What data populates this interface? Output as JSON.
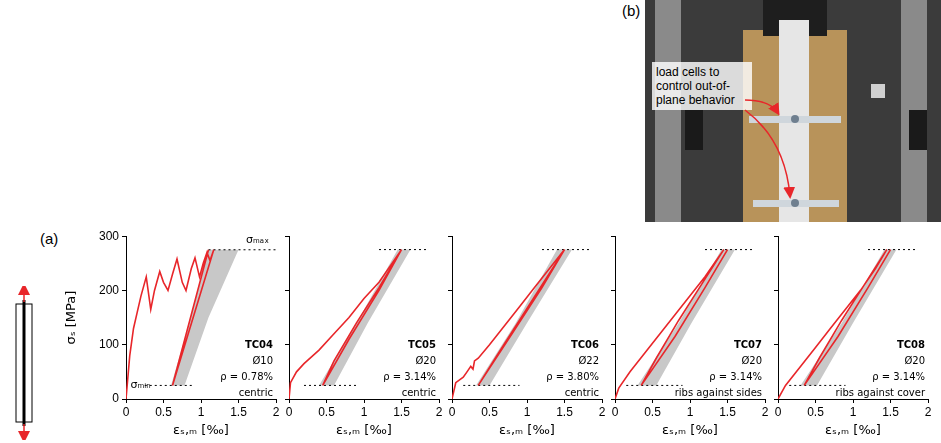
{
  "figure": {
    "panel_a_label": "(a)",
    "panel_b_label": "(b)",
    "photo_annotation": "load cells to control out-of-plane behavior"
  },
  "chart_data": [
    {
      "type": "line",
      "ylabel": "σₛ [MPa]",
      "xlabel": "εₛ,ₘ [‰]",
      "xlim": [
        0,
        2
      ],
      "xticks": [
        0,
        0.5,
        1,
        1.5,
        2
      ],
      "ylim": [
        0,
        300
      ],
      "yticks": [
        0,
        100,
        200,
        300
      ],
      "grid": false,
      "text_block": [
        "TC04",
        "Ø10",
        "ρ = 0.78%",
        "centric"
      ],
      "annotations": [
        {
          "text": "σₘₐₓ",
          "x": 1.6,
          "y": 292
        },
        {
          "text": "σₘᵢₙ",
          "x": 0.06,
          "y": 25
        }
      ],
      "series": [
        {
          "type": "area",
          "color": "#c8c8c8",
          "x": [
            0.6,
            0.8,
            1.1,
            1.5,
            1.1,
            0.78
          ],
          "values": [
            25,
            120,
            275,
            275,
            150,
            25
          ]
        },
        {
          "type": "line",
          "color": "#e8262a",
          "x": [
            0,
            0.05,
            0.1,
            0.15,
            0.2,
            0.27,
            0.33,
            0.38,
            0.45,
            0.5,
            0.56,
            0.62,
            0.68,
            0.75,
            0.8,
            0.87,
            0.92,
            0.98,
            1.03,
            1.08,
            1.12,
            1.17,
            0.62,
            1.1
          ],
          "values": [
            0,
            80,
            130,
            160,
            190,
            225,
            165,
            200,
            235,
            215,
            200,
            230,
            258,
            215,
            200,
            240,
            260,
            225,
            250,
            270,
            255,
            275,
            25,
            275
          ]
        },
        {
          "type": "line",
          "line_style": "dotted",
          "color": "#000000",
          "x": [
            1.1,
            2
          ],
          "values": [
            275,
            275
          ]
        },
        {
          "type": "line",
          "line_style": "dotted",
          "color": "#000000",
          "x": [
            0.25,
            0.9
          ],
          "values": [
            25,
            25
          ]
        }
      ]
    },
    {
      "type": "line",
      "xlabel": "εₛ,ₘ [‰]",
      "tick_labels": "x",
      "xlim": [
        0,
        2
      ],
      "xticks": [
        0,
        0.5,
        1,
        1.5,
        2
      ],
      "ylim": [
        0,
        300
      ],
      "yticks": [
        0,
        100,
        200,
        300
      ],
      "grid": false,
      "text_block": [
        "TC05",
        "Ø20",
        "ρ = 3.14%",
        "centric"
      ],
      "series": [
        {
          "type": "area",
          "color": "#c8c8c8",
          "x": [
            0.4,
            0.9,
            1.45,
            1.62,
            1.05,
            0.6
          ],
          "values": [
            25,
            140,
            275,
            275,
            140,
            25
          ]
        },
        {
          "type": "line",
          "color": "#e8262a",
          "x": [
            0,
            0.02,
            0.1,
            0.2,
            0.4,
            0.6,
            0.8,
            1.0,
            1.2,
            1.35,
            1.5,
            1.2,
            0.9,
            0.6,
            0.45,
            0.8,
            1.2,
            1.5
          ],
          "values": [
            0,
            30,
            50,
            65,
            90,
            120,
            150,
            185,
            215,
            245,
            275,
            205,
            140,
            70,
            25,
            110,
            200,
            275
          ]
        },
        {
          "type": "line",
          "line_style": "dotted",
          "color": "#000000",
          "x": [
            1.2,
            1.85
          ],
          "values": [
            275,
            275
          ]
        },
        {
          "type": "line",
          "line_style": "dotted",
          "color": "#000000",
          "x": [
            0.2,
            0.9
          ],
          "values": [
            25,
            25
          ]
        }
      ]
    },
    {
      "type": "line",
      "xlabel": "εₛ,ₘ [‰]",
      "tick_labels": "x",
      "xlim": [
        0,
        2
      ],
      "xticks": [
        0,
        0.5,
        1,
        1.5,
        2
      ],
      "ylim": [
        0,
        300
      ],
      "yticks": [
        0,
        100,
        200,
        300
      ],
      "grid": false,
      "text_block": [
        "TC06",
        "Ø22",
        "ρ = 3.80%",
        "centric"
      ],
      "series": [
        {
          "type": "area",
          "color": "#c8c8c8",
          "x": [
            0.32,
            0.85,
            1.4,
            1.6,
            1.0,
            0.5
          ],
          "values": [
            25,
            140,
            275,
            275,
            140,
            25
          ]
        },
        {
          "type": "line",
          "color": "#e8262a",
          "x": [
            0,
            0.05,
            0.15,
            0.2,
            0.25,
            0.28,
            0.3,
            0.35,
            0.5,
            0.7,
            0.9,
            1.1,
            1.3,
            1.5,
            1.2,
            0.9,
            0.6,
            0.35,
            0.8,
            1.2,
            1.5
          ],
          "values": [
            0,
            30,
            40,
            50,
            60,
            55,
            70,
            75,
            100,
            135,
            170,
            205,
            240,
            275,
            210,
            145,
            80,
            25,
            120,
            205,
            275
          ]
        },
        {
          "type": "line",
          "line_style": "dotted",
          "color": "#000000",
          "x": [
            1.2,
            1.85
          ],
          "values": [
            275,
            275
          ]
        },
        {
          "type": "line",
          "line_style": "dotted",
          "color": "#000000",
          "x": [
            0.15,
            0.9
          ],
          "values": [
            25,
            25
          ]
        }
      ]
    },
    {
      "type": "line",
      "xlabel": "εₛ,ₘ [‰]",
      "tick_labels": "x",
      "xlim": [
        0,
        2
      ],
      "xticks": [
        0,
        0.5,
        1,
        1.5,
        2
      ],
      "ylim": [
        0,
        300
      ],
      "yticks": [
        0,
        100,
        200,
        300
      ],
      "grid": false,
      "text_block": [
        "TC07",
        "Ø20",
        "ρ = 3.14%",
        "ribs against sides"
      ],
      "series": [
        {
          "type": "area",
          "color": "#c8c8c8",
          "x": [
            0.3,
            0.85,
            1.42,
            1.6,
            1.02,
            0.55
          ],
          "values": [
            25,
            140,
            275,
            275,
            140,
            25
          ]
        },
        {
          "type": "line",
          "color": "#e8262a",
          "x": [
            0,
            0.05,
            0.2,
            0.4,
            0.6,
            0.8,
            1.0,
            1.2,
            1.45,
            1.15,
            0.85,
            0.55,
            0.35,
            0.8,
            1.2,
            1.5
          ],
          "values": [
            0,
            20,
            50,
            85,
            120,
            155,
            190,
            225,
            275,
            210,
            145,
            75,
            25,
            115,
            205,
            275
          ]
        },
        {
          "type": "line",
          "line_style": "dotted",
          "color": "#000000",
          "x": [
            1.2,
            1.85
          ],
          "values": [
            275,
            275
          ]
        },
        {
          "type": "line",
          "line_style": "dotted",
          "color": "#000000",
          "x": [
            0.15,
            0.9
          ],
          "values": [
            25,
            25
          ]
        }
      ]
    },
    {
      "type": "line",
      "xlabel": "εₛ,ₘ [‰]",
      "tick_labels": "x",
      "xlim": [
        0,
        2
      ],
      "xticks": [
        0,
        0.5,
        1,
        1.5,
        2
      ],
      "ylim": [
        0,
        300
      ],
      "yticks": [
        0,
        100,
        200,
        300
      ],
      "grid": false,
      "text_block": [
        "TC08",
        "Ø20",
        "ρ = 3.14%",
        "ribs against cover"
      ],
      "series": [
        {
          "type": "area",
          "color": "#c8c8c8",
          "x": [
            0.3,
            0.85,
            1.42,
            1.58,
            1.0,
            0.52
          ],
          "values": [
            25,
            140,
            275,
            275,
            140,
            25
          ]
        },
        {
          "type": "line",
          "color": "#e8262a",
          "x": [
            0,
            0.1,
            0.3,
            0.5,
            0.7,
            0.9,
            1.1,
            1.3,
            1.45,
            1.15,
            0.85,
            0.55,
            0.35,
            0.8,
            1.2,
            1.5
          ],
          "values": [
            0,
            25,
            60,
            95,
            130,
            165,
            200,
            240,
            275,
            210,
            145,
            75,
            25,
            115,
            205,
            275
          ]
        },
        {
          "type": "line",
          "line_style": "dotted",
          "color": "#000000",
          "x": [
            1.2,
            1.85
          ],
          "values": [
            275,
            275
          ]
        },
        {
          "type": "line",
          "line_style": "dotted",
          "color": "#000000",
          "x": [
            0.15,
            0.9
          ],
          "values": [
            25,
            25
          ]
        }
      ]
    }
  ]
}
